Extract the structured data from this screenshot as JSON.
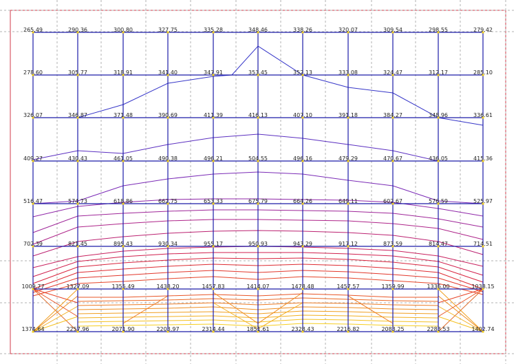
{
  "grid": {
    "rows": [
      [
        "265.49",
        "290.36",
        "300.80",
        "327.75",
        "335.28",
        "348.46",
        "338.26",
        "320.07",
        "309.54",
        "298.55",
        "279.42"
      ],
      [
        "278.60",
        "305.77",
        "318.91",
        "341.40",
        "347.91",
        "353.45",
        "352.13",
        "333.08",
        "324.47",
        "312.17",
        "285.10"
      ],
      [
        "326.07",
        "346.87",
        "371.48",
        "390.69",
        "411.39",
        "416.13",
        "407.10",
        "391.18",
        "384.27",
        "348.96",
        "336.61"
      ],
      [
        "409.27",
        "430.43",
        "461.05",
        "490.38",
        "496.21",
        "504.55",
        "496.16",
        "479.29",
        "470.67",
        "436.05",
        "415.36"
      ],
      [
        "516.47",
        "574.73",
        "618.86",
        "662.75",
        "653.33",
        "675.79",
        "664.26",
        "649.11",
        "602.67",
        "576.59",
        "525.97"
      ],
      [
        "702.39",
        "821.45",
        "895.43",
        "930.34",
        "955.17",
        "950.93",
        "943.29",
        "917.12",
        "873.59",
        "814.47",
        "714.51"
      ],
      [
        "1009.77",
        "1327.09",
        "1355.49",
        "1438.20",
        "1457.83",
        "1414.07",
        "1478.48",
        "1457.57",
        "1359.99",
        "1336.00",
        "1038.15"
      ],
      [
        "1374.64",
        "2257.96",
        "2071.90",
        "2203.97",
        "2314.44",
        "1851.61",
        "2328.43",
        "2216.82",
        "2083.25",
        "2283.53",
        "1402.74"
      ]
    ]
  },
  "colors": {
    "grid_line": "#1a1aa8",
    "node": "#f0d020",
    "border": "#d03a4a",
    "dashed": "#b0b0b0",
    "label": "#222222"
  }
}
